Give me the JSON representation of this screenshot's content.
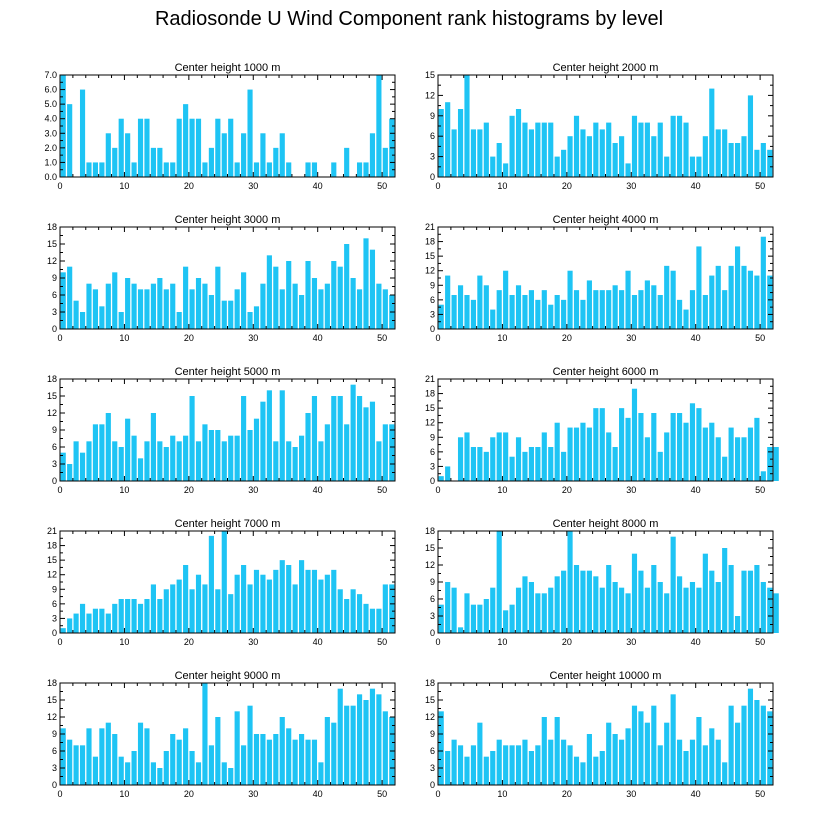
{
  "title": "Radiosonde U Wind Component rank histograms by level",
  "colors": {
    "bar": "#1ec4f4",
    "axis": "#000000"
  },
  "chart_data": [
    {
      "type": "bar",
      "title": "Center height 1000 m",
      "x_ticks": [
        0,
        10,
        20,
        30,
        40,
        50
      ],
      "y_ticks": [
        "0.0",
        "1.0",
        "2.0",
        "3.0",
        "4.0",
        "5.0",
        "6.0",
        "7.0"
      ],
      "ylim": [
        0,
        7
      ],
      "xlim": [
        0,
        52
      ],
      "values": [
        7,
        5,
        0,
        6,
        1,
        1,
        1,
        3,
        2,
        4,
        3,
        1,
        4,
        4,
        2,
        2,
        1,
        1,
        4,
        5,
        4,
        4,
        1,
        2,
        4,
        3,
        4,
        1,
        3,
        6,
        1,
        3,
        1,
        2,
        3,
        1,
        0,
        0,
        1,
        1,
        0,
        0,
        1,
        0,
        2,
        0,
        1,
        1,
        3,
        7,
        2,
        4
      ]
    },
    {
      "type": "bar",
      "title": "Center height 2000 m",
      "x_ticks": [
        0,
        10,
        20,
        30,
        40,
        50
      ],
      "y_ticks": [
        "0",
        "3",
        "6",
        "9",
        "12",
        "15"
      ],
      "ylim": [
        0,
        15
      ],
      "xlim": [
        0,
        52
      ],
      "values": [
        10,
        11,
        7,
        10,
        15,
        7,
        7,
        8,
        3,
        5,
        2,
        9,
        10,
        8,
        7,
        8,
        8,
        8,
        3,
        4,
        6,
        9,
        7,
        6,
        8,
        7,
        8,
        5,
        6,
        2,
        9,
        8,
        8,
        6,
        8,
        3,
        9,
        9,
        8,
        3,
        3,
        6,
        13,
        7,
        7,
        5,
        5,
        6,
        12,
        4,
        5,
        4
      ]
    },
    {
      "type": "bar",
      "title": "Center height 3000 m",
      "x_ticks": [
        0,
        10,
        20,
        30,
        40,
        50
      ],
      "y_ticks": [
        "0",
        "3",
        "6",
        "9",
        "12",
        "15",
        "18"
      ],
      "ylim": [
        0,
        18
      ],
      "xlim": [
        0,
        52
      ],
      "values": [
        10,
        11,
        5,
        3,
        8,
        7,
        4,
        8,
        10,
        3,
        9,
        8,
        7,
        7,
        8,
        9,
        7,
        8,
        3,
        11,
        7,
        9,
        8,
        6,
        11,
        5,
        5,
        7,
        10,
        3,
        4,
        8,
        13,
        11,
        7,
        12,
        8,
        6,
        12,
        9,
        7,
        8,
        12,
        11,
        15,
        9,
        7,
        16,
        14,
        8,
        7,
        6
      ]
    },
    {
      "type": "bar",
      "title": "Center height 4000 m",
      "x_ticks": [
        0,
        10,
        20,
        30,
        40,
        50
      ],
      "y_ticks": [
        "0",
        "3",
        "6",
        "9",
        "12",
        "15",
        "18",
        "21"
      ],
      "ylim": [
        0,
        21
      ],
      "xlim": [
        0,
        52
      ],
      "values": [
        5,
        11,
        7,
        9,
        7,
        6,
        11,
        9,
        4,
        8,
        12,
        7,
        9,
        7,
        8,
        6,
        8,
        5,
        7,
        6,
        12,
        8,
        6,
        10,
        8,
        8,
        8,
        9,
        8,
        12,
        7,
        8,
        10,
        9,
        7,
        13,
        12,
        6,
        4,
        8,
        17,
        7,
        11,
        13,
        8,
        13,
        17,
        13,
        12,
        11,
        19,
        11
      ]
    },
    {
      "type": "bar",
      "title": "Center height 5000 m",
      "x_ticks": [
        0,
        10,
        20,
        30,
        40,
        50
      ],
      "y_ticks": [
        "0",
        "3",
        "6",
        "9",
        "12",
        "15",
        "18"
      ],
      "ylim": [
        0,
        18
      ],
      "xlim": [
        0,
        52
      ],
      "values": [
        5,
        3,
        7,
        5,
        7,
        10,
        10,
        12,
        7,
        6,
        11,
        8,
        4,
        7,
        12,
        7,
        6,
        8,
        7,
        8,
        15,
        7,
        10,
        9,
        9,
        7,
        8,
        8,
        15,
        9,
        11,
        14,
        16,
        7,
        16,
        7,
        6,
        8,
        12,
        15,
        7,
        10,
        15,
        15,
        10,
        17,
        15,
        13,
        14,
        7,
        10,
        10
      ]
    },
    {
      "type": "bar",
      "title": "Center height 6000 m",
      "x_ticks": [
        0,
        10,
        20,
        30,
        40,
        50
      ],
      "y_ticks": [
        "0",
        "3",
        "6",
        "9",
        "12",
        "15",
        "18",
        "21"
      ],
      "ylim": [
        0,
        21
      ],
      "xlim": [
        0,
        52
      ],
      "values": [
        1,
        3,
        0,
        9,
        10,
        7,
        7,
        6,
        9,
        10,
        10,
        5,
        9,
        6,
        7,
        7,
        10,
        7,
        12,
        6,
        11,
        11,
        12,
        11,
        15,
        15,
        10,
        7,
        15,
        13,
        19,
        14,
        9,
        14,
        6,
        10,
        14,
        14,
        12,
        16,
        15,
        11,
        12,
        9,
        5,
        11,
        9,
        9,
        11,
        13,
        2,
        7,
        7
      ]
    },
    {
      "type": "bar",
      "title": "Center height 7000 m",
      "x_ticks": [
        0,
        10,
        20,
        30,
        40,
        50
      ],
      "y_ticks": [
        "0",
        "3",
        "6",
        "9",
        "12",
        "15",
        "18",
        "21"
      ],
      "ylim": [
        0,
        21
      ],
      "xlim": [
        0,
        52
      ],
      "values": [
        1,
        3,
        4,
        6,
        4,
        5,
        5,
        4,
        6,
        7,
        7,
        7,
        6,
        7,
        10,
        7,
        9,
        10,
        11,
        14,
        9,
        12,
        10,
        20,
        9,
        21,
        8,
        12,
        14,
        10,
        13,
        12,
        11,
        13,
        15,
        14,
        10,
        15,
        13,
        13,
        11,
        12,
        13,
        9,
        7,
        9,
        8,
        6,
        5,
        5,
        10,
        10
      ]
    },
    {
      "type": "bar",
      "title": "Center height 8000 m",
      "x_ticks": [
        0,
        10,
        20,
        30,
        40,
        50
      ],
      "y_ticks": [
        "0",
        "3",
        "6",
        "9",
        "12",
        "15",
        "18"
      ],
      "ylim": [
        0,
        18
      ],
      "xlim": [
        0,
        52
      ],
      "values": [
        5,
        9,
        8,
        1,
        7,
        5,
        5,
        6,
        8,
        18,
        4,
        5,
        8,
        10,
        9,
        7,
        7,
        8,
        10,
        11,
        18,
        12,
        11,
        11,
        10,
        8,
        12,
        9,
        8,
        7,
        14,
        11,
        8,
        12,
        9,
        7,
        17,
        10,
        8,
        9,
        8,
        14,
        11,
        9,
        15,
        12,
        3,
        11,
        11,
        12,
        9,
        8,
        7
      ]
    },
    {
      "type": "bar",
      "title": "Center height 9000 m",
      "x_ticks": [
        0,
        10,
        20,
        30,
        40,
        50
      ],
      "y_ticks": [
        "0",
        "3",
        "6",
        "9",
        "12",
        "15",
        "18"
      ],
      "ylim": [
        0,
        18
      ],
      "xlim": [
        0,
        52
      ],
      "values": [
        10,
        8,
        7,
        7,
        10,
        5,
        10,
        11,
        9,
        5,
        4,
        6,
        11,
        10,
        4,
        3,
        6,
        9,
        8,
        10,
        6,
        4,
        18,
        7,
        12,
        4,
        3,
        13,
        7,
        14,
        9,
        9,
        8,
        9,
        12,
        10,
        8,
        9,
        8,
        8,
        4,
        12,
        11,
        17,
        14,
        14,
        16,
        15,
        17,
        16,
        13,
        12
      ]
    },
    {
      "type": "bar",
      "title": "Center height 10000 m",
      "x_ticks": [
        0,
        10,
        20,
        30,
        40,
        50
      ],
      "y_ticks": [
        "0",
        "3",
        "6",
        "9",
        "12",
        "15",
        "18"
      ],
      "ylim": [
        0,
        18
      ],
      "xlim": [
        0,
        52
      ],
      "values": [
        13,
        6,
        8,
        7,
        5,
        7,
        11,
        5,
        6,
        8,
        7,
        7,
        7,
        8,
        6,
        7,
        12,
        8,
        12,
        8,
        7,
        5,
        4,
        9,
        5,
        6,
        11,
        9,
        8,
        10,
        14,
        13,
        11,
        14,
        7,
        11,
        16,
        8,
        6,
        8,
        12,
        7,
        10,
        8,
        4,
        14,
        11,
        14,
        17,
        15,
        14,
        13
      ]
    }
  ]
}
